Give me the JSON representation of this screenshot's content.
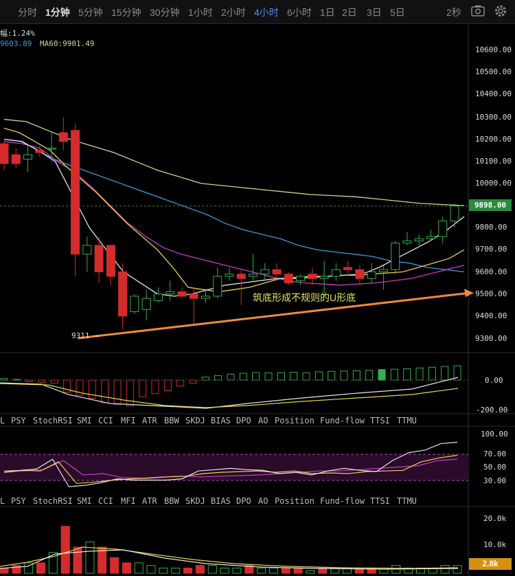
{
  "toolbar": {
    "timeframes": [
      "分时",
      "1分钟",
      "5分钟",
      "15分钟",
      "30分钟",
      "1小时",
      "2小时",
      "4小时",
      "6小时",
      "1日",
      "2日",
      "3日",
      "5日"
    ],
    "active": "4小时",
    "refresh": "2秒",
    "camera_icon": "camera-icon",
    "gear_icon": "gear-icon"
  },
  "info": {
    "change": "幅:1.24%",
    "ma_left": "9603.89",
    "ma60": "MA60:9901.49"
  },
  "price_axis": {
    "ticks": [
      "10600.00",
      "10500.00",
      "10400.00",
      "10300.00",
      "10200.00",
      "10100.00",
      "10000.00",
      "9800.00",
      "9700.00",
      "9600.00",
      "9500.00",
      "9400.00",
      "9300.00"
    ],
    "current_price": "9898.00"
  },
  "annotations": {
    "pattern_text": "筑底形成不规则的U形底",
    "low_label": "9311 →"
  },
  "macd_axis": {
    "ticks": [
      "0.00",
      "-200.00"
    ]
  },
  "rsi_axis": {
    "ticks": [
      "100.00",
      "70.00",
      "50.00",
      "30.00"
    ]
  },
  "vol_axis": {
    "ticks": [
      "20.0k",
      "10.0k"
    ],
    "current": "2.8k"
  },
  "indicator_tabs": [
    "L",
    "PSY",
    "StochRSI",
    "SMI",
    "CCI",
    "MFI",
    "ATR",
    "BBW",
    "SKDJ",
    "BIAS",
    "DPO",
    "AO",
    "Position",
    "Fund-flow",
    "TTSI",
    "TTMU"
  ],
  "colors": {
    "up": "#2fb24f",
    "down": "#d42c2c",
    "ma_yellow": "#e8d44d",
    "ma_white": "#e6e6e6",
    "ma_magenta": "#c83cc8",
    "ma_blue": "#3a9bdc",
    "ma60": "#cfd98a",
    "trend": "#f08a3c",
    "accent": "#4a8ff0"
  },
  "chart_data": {
    "type": "candlestick",
    "y_range": [
      9220,
      10660
    ],
    "candles": [
      [
        10180,
        10190,
        10060,
        10090
      ],
      [
        10130,
        10160,
        10070,
        10090
      ],
      [
        10110,
        10170,
        10050,
        10130
      ],
      [
        10150,
        10170,
        10120,
        10140
      ],
      [
        10160,
        10230,
        10100,
        10160
      ],
      [
        10230,
        10300,
        10150,
        10190
      ],
      [
        10240,
        10270,
        9580,
        9680
      ],
      [
        9680,
        9760,
        9600,
        9720
      ],
      [
        9720,
        9760,
        9550,
        9600
      ],
      [
        9720,
        9720,
        9540,
        9580
      ],
      [
        9600,
        9640,
        9340,
        9400
      ],
      [
        9420,
        9500,
        9410,
        9490
      ],
      [
        9430,
        9520,
        9380,
        9480
      ],
      [
        9470,
        9530,
        9460,
        9500
      ],
      [
        9500,
        9560,
        9470,
        9510
      ],
      [
        9510,
        9530,
        9480,
        9490
      ],
      [
        9500,
        9530,
        9360,
        9480
      ],
      [
        9480,
        9520,
        9460,
        9490
      ],
      [
        9490,
        9620,
        9480,
        9580
      ],
      [
        9580,
        9620,
        9560,
        9590
      ],
      [
        9590,
        9610,
        9450,
        9570
      ],
      [
        9580,
        9680,
        9560,
        9590
      ],
      [
        9590,
        9640,
        9560,
        9610
      ],
      [
        9610,
        9640,
        9560,
        9590
      ],
      [
        9590,
        9600,
        9540,
        9550
      ],
      [
        9560,
        9590,
        9540,
        9580
      ],
      [
        9590,
        9620,
        9540,
        9570
      ],
      [
        9570,
        9650,
        9490,
        9580
      ],
      [
        9580,
        9640,
        9560,
        9610
      ],
      [
        9620,
        9650,
        9580,
        9610
      ],
      [
        9610,
        9630,
        9540,
        9570
      ],
      [
        9570,
        9640,
        9550,
        9600
      ],
      [
        9600,
        9630,
        9520,
        9610
      ],
      [
        9610,
        9740,
        9590,
        9730
      ],
      [
        9730,
        9780,
        9720,
        9740
      ],
      [
        9740,
        9770,
        9720,
        9750
      ],
      [
        9750,
        9790,
        9740,
        9760
      ],
      [
        9760,
        9850,
        9730,
        9830
      ],
      [
        9830,
        9910,
        9800,
        9898
      ]
    ],
    "ma_yellow": [
      10250,
      10230,
      10190,
      10150,
      10080,
      10020,
      9960,
      9890,
      9820,
      9760,
      9700,
      9620,
      9530,
      9520,
      9510,
      9520,
      9530,
      9550,
      9570,
      9575,
      9580,
      9580,
      9585,
      9585,
      9590,
      9595,
      9600,
      9620,
      9640,
      9660,
      9700
    ],
    "ma_white": [
      10200,
      10190,
      10150,
      10100,
      9950,
      9800,
      9700,
      9600,
      9550,
      9500,
      9490,
      9500,
      9520,
      9540,
      9550,
      9560,
      9570,
      9570,
      9575,
      9580,
      9585,
      9590,
      9620,
      9660,
      9700,
      9740,
      9790,
      9850
    ],
    "ma_magenta": [
      10190,
      10180,
      10160,
      10100,
      10050,
      9980,
      9900,
      9820,
      9760,
      9710,
      9680,
      9660,
      9640,
      9620,
      9600,
      9580,
      9560,
      9550,
      9545,
      9540,
      9545,
      9550,
      9560,
      9570,
      9590,
      9610,
      9630
    ],
    "ma_blue": [
      10200,
      10190,
      10140,
      10100,
      10070,
      10040,
      10010,
      9980,
      9950,
      9920,
      9890,
      9860,
      9820,
      9790,
      9770,
      9750,
      9720,
      9700,
      9690,
      9680,
      9670,
      9650,
      9640,
      9620,
      9610,
      9600
    ],
    "ma60": [
      10290,
      10280,
      10240,
      10200,
      10170,
      10140,
      10100,
      10060,
      10030,
      10000,
      9990,
      9980,
      9970,
      9960,
      9950,
      9945,
      9940,
      9930,
      9920,
      9910,
      9905,
      9900
    ],
    "trend": [
      [
        9300,
        0
      ],
      [
        9500,
        1
      ]
    ],
    "macd_hist": [
      10,
      5,
      -10,
      -15,
      -20,
      -80,
      -100,
      -120,
      -150,
      -160,
      -170,
      -110,
      -90,
      -70,
      -40,
      -20,
      20,
      30,
      40,
      45,
      50,
      48,
      50,
      52,
      48,
      55,
      58,
      60,
      62,
      65,
      70,
      72,
      75,
      80,
      85,
      90,
      95
    ],
    "rsi_purple": [
      42,
      44,
      46,
      60,
      38,
      40,
      34,
      33,
      35,
      36,
      35,
      36,
      37,
      38,
      40,
      42,
      44,
      44,
      46,
      48,
      50,
      52,
      60,
      62
    ],
    "rsi_white": [
      42,
      45,
      47,
      62,
      20,
      22,
      26,
      32,
      30,
      30,
      30,
      32,
      44,
      46,
      48,
      46,
      45,
      40,
      42,
      38,
      44,
      48,
      45,
      43,
      60,
      72,
      76,
      86,
      88
    ],
    "rsi_yellow": [
      44,
      45,
      44,
      58,
      25,
      27,
      30,
      32,
      33,
      35,
      36,
      40,
      42,
      43,
      44,
      42,
      44,
      40,
      41,
      40,
      43,
      44,
      45,
      58,
      64,
      68
    ],
    "vol_values": [
      2,
      3,
      4,
      4,
      8,
      18,
      10,
      12,
      10,
      6,
      4,
      4,
      3,
      2,
      2,
      2,
      3,
      3,
      2,
      2,
      3,
      2,
      2,
      2,
      2,
      1,
      2,
      2,
      2,
      2,
      2,
      2,
      3,
      2,
      2,
      2,
      3,
      3
    ]
  }
}
